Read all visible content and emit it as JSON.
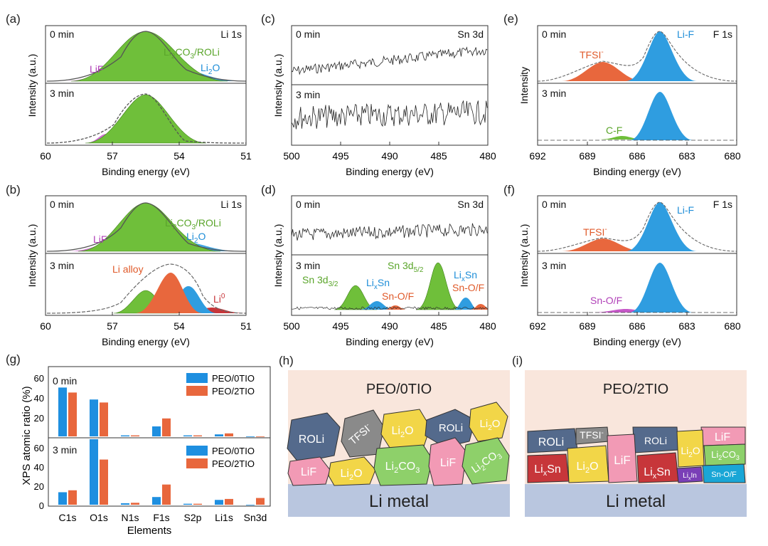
{
  "panels": {
    "a": {
      "label": "(a)",
      "xlabel": "Binding energy (eV)",
      "ylabel": "Intensity (a.u.)",
      "xticks": [
        "60",
        "57",
        "54",
        "51"
      ],
      "top": {
        "time": "0 min",
        "element": "Li 1s",
        "peaks": {
          "lif": "LiF",
          "li2co3_pre": "Li",
          "li2co3_sub": "2",
          "li2co3_post": "CO",
          "li2co3_sub2": "3",
          "li2co3_tail": "/ROLi",
          "li2o_pre": "Li",
          "li2o_sub": "2",
          "li2o_post": "O"
        }
      },
      "bottom": {
        "time": "3 min"
      }
    },
    "b": {
      "label": "(b)",
      "xlabel": "Binding energy (eV)",
      "ylabel": "Intensity (a.u.)",
      "xticks": [
        "60",
        "57",
        "54",
        "51"
      ],
      "top": {
        "time": "0 min",
        "element": "Li 1s",
        "peaks": {
          "lif": "LiF",
          "li2co3_pre": "Li",
          "li2co3_sub": "2",
          "li2co3_post": "CO",
          "li2co3_sub2": "3",
          "li2co3_tail": "/ROLi",
          "li2o_pre": "Li",
          "li2o_sub": "2",
          "li2o_post": "O"
        }
      },
      "bottom": {
        "time": "3 min",
        "alloy": "Li alloy",
        "li0_pre": "Li",
        "li0_sup": "0"
      }
    },
    "c": {
      "label": "(c)",
      "xlabel": "Binding energy (eV)",
      "ylabel": "Intensity (a.u.)",
      "xticks": [
        "500",
        "495",
        "490",
        "485",
        "480"
      ],
      "top": {
        "time": "0 min",
        "element": "Sn 3d"
      },
      "bottom": {
        "time": "3 min"
      }
    },
    "d": {
      "label": "(d)",
      "xlabel": "Binding energy (eV)",
      "ylabel": "Intensity (a.u.)",
      "xticks": [
        "500",
        "495",
        "490",
        "485",
        "480"
      ],
      "top": {
        "time": "0 min",
        "element": "Sn 3d"
      },
      "bottom": {
        "time": "3 min",
        "sn32_pre": "Sn 3d",
        "sn32_sub": "3/2",
        "sn52_pre": "Sn 3d",
        "sn52_sub": "5/2",
        "lixsn_pre": "Li",
        "lixsn_sub": "x",
        "lixsn_post": "Sn",
        "snof": "Sn-O/F"
      }
    },
    "e": {
      "label": "(e)",
      "xlabel": "Binding energy (eV)",
      "ylabel": "Intensity",
      "xticks": [
        "692",
        "689",
        "686",
        "683",
        "680"
      ],
      "top": {
        "time": "0 min",
        "element": "F 1s",
        "tfsi_pre": "TFSI",
        "tfsi_sup": "-",
        "lif": "Li-F"
      },
      "bottom": {
        "time": "3 min",
        "cf": "C-F"
      }
    },
    "f": {
      "label": "(f)",
      "xlabel": "Binding energy (eV)",
      "ylabel": "Intensity (a.u.)",
      "xticks": [
        "692",
        "689",
        "686",
        "683",
        "680"
      ],
      "top": {
        "time": "0 min",
        "element": "F 1s",
        "tfsi_pre": "TFSI",
        "tfsi_sup": "-",
        "lif": "Li-F"
      },
      "bottom": {
        "time": "3 min",
        "snof": "Sn-O/F"
      }
    },
    "g": {
      "label": "(g)",
      "xlabel": "Elements",
      "ylabel": "XPS atomic ratio (%)",
      "top_time": "0 min",
      "bottom_time": "3 min",
      "yticks_top": [
        "20",
        "40",
        "60"
      ],
      "yticks_bottom": [
        "0",
        "20",
        "40",
        "60"
      ]
    },
    "h": {
      "label": "(h)",
      "title": "PEO/0TIO",
      "substrate": "Li metal",
      "grains": {
        "roli1": "ROLi",
        "tfsi_pre": "TFSI",
        "tfsi_sup": "-",
        "li2o1_pre": "Li",
        "li2o1_sub": "2",
        "li2o1_post": "O",
        "roli2": "ROLi",
        "li2o2_pre": "Li",
        "li2o2_sub": "2",
        "li2o2_post": "O",
        "lif1": "LiF",
        "li2o3_pre": "Li",
        "li2o3_sub": "2",
        "li2o3_post": "O",
        "li2co3_1_pre": "Li",
        "li2co3_1_sub": "2",
        "li2co3_1_post": "CO",
        "li2co3_1_sub2": "3",
        "lif2": "LiF",
        "li2co3_2_pre": "Li",
        "li2co3_2_sub": "2",
        "li2co3_2_post": "CO",
        "li2co3_2_sub2": "3"
      }
    },
    "i": {
      "label": "(i)",
      "title": "PEO/2TIO",
      "substrate": "Li metal",
      "grains": {
        "roli1": "ROLi",
        "tfsi_pre": "TFSI",
        "tfsi_sup": "-",
        "roli2": "ROLi",
        "lif1": "LiF",
        "lixsn1_pre": "Li",
        "lixsn1_sub": "x",
        "lixsn1_post": "Sn",
        "li2o1_pre": "Li",
        "li2o1_sub": "2",
        "li2o1_post": "O",
        "lif2": "LiF",
        "lixsn2_pre": "Li",
        "lixsn2_sub": "x",
        "lixsn2_post": "Sn",
        "lixin_pre": "Li",
        "lixin_sub": "x",
        "lixin_post": "In",
        "li2o2_pre": "Li",
        "li2o2_sub": "2",
        "li2o2_post": "O",
        "li2co3_pre": "Li",
        "li2co3_sub": "2",
        "li2co3_post": "CO",
        "li2co3_sub2": "3",
        "snof": "Sn-O/F"
      }
    }
  },
  "chart_data": [
    {
      "type": "bar",
      "title": "0 min",
      "categories": [
        "C1s",
        "O1s",
        "N1s",
        "F1s",
        "S2p",
        "Li1s",
        "Sn3d"
      ],
      "series": [
        {
          "name": "PEO/0TIO",
          "values": [
            49,
            37,
            1,
            10,
            1,
            2,
            0
          ]
        },
        {
          "name": "PEO/2TIO",
          "values": [
            44,
            34,
            1,
            18,
            1,
            3,
            0
          ]
        }
      ],
      "xlabel": "Elements",
      "ylabel": "XPS atomic ratio (%)",
      "ylim": [
        0,
        70
      ],
      "colors": {
        "PEO/0TIO": "#1e8fe0",
        "PEO/2TIO": "#e8673d"
      }
    },
    {
      "type": "bar",
      "title": "3 min",
      "categories": [
        "C1s",
        "O1s",
        "N1s",
        "F1s",
        "S2p",
        "Li1s",
        "Sn3d"
      ],
      "series": [
        {
          "name": "PEO/0TIO",
          "values": [
            13,
            71,
            1.5,
            8,
            1,
            5,
            0
          ]
        },
        {
          "name": "PEO/2TIO",
          "values": [
            15,
            47,
            2,
            21,
            1,
            6,
            7
          ]
        }
      ],
      "xlabel": "Elements",
      "ylabel": "XPS atomic ratio (%)",
      "ylim": [
        0,
        70
      ],
      "colors": {
        "PEO/0TIO": "#1e8fe0",
        "PEO/2TIO": "#e8673d"
      }
    }
  ]
}
